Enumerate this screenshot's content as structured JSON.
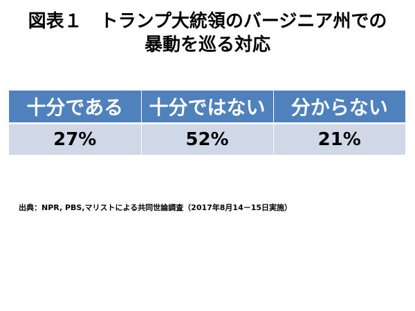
{
  "title": {
    "line1": "図表１　トランプ大統領のバージニア州での",
    "line2": "暴動を巡る対応"
  },
  "table": {
    "headers": [
      "十分である",
      "十分ではない",
      "分からない"
    ],
    "values": [
      "27%",
      "52%",
      "21%"
    ]
  },
  "source": "出典：NPR, PBS,マリストによる共同世論調査（2017年8月14－15日実施）",
  "colors": {
    "header_bg": "#4f81bd",
    "value_bg": "#d0d8e8"
  }
}
